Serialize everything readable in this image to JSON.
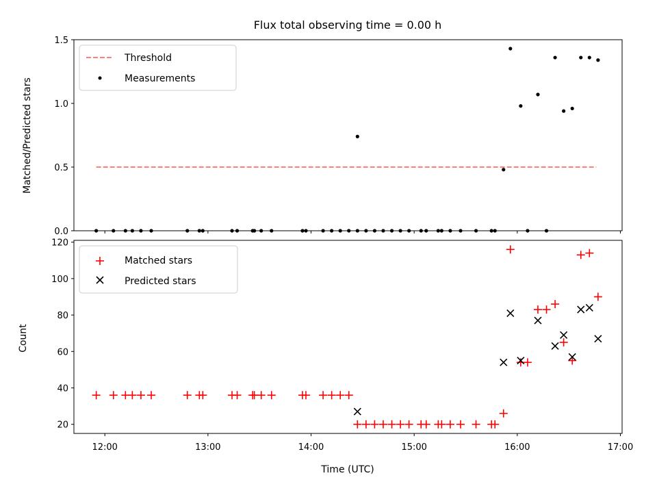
{
  "chart_data": [
    {
      "type": "scatter",
      "title": "Flux total observing time = 0.00 h",
      "xlabel": "",
      "ylabel": "Matched/Predicted stars",
      "ylim": [
        0,
        1.5
      ],
      "yticks": [
        "0.0",
        "0.5",
        "1.0",
        "1.5"
      ],
      "legend_position": "top-left",
      "threshold": {
        "name": "Threshold",
        "value": 0.5,
        "x_start": "11:55",
        "x_end": "16:46",
        "color": "#ff7f7f",
        "style": "dashed"
      },
      "series": [
        {
          "name": "Measurements",
          "color": "#000000",
          "marker": "dot",
          "points": [
            [
              "11:55",
              0
            ],
            [
              "12:05",
              0
            ],
            [
              "12:12",
              0
            ],
            [
              "12:16",
              0
            ],
            [
              "12:21",
              0
            ],
            [
              "12:27",
              0
            ],
            [
              "12:48",
              0
            ],
            [
              "12:55",
              0
            ],
            [
              "12:57",
              0
            ],
            [
              "13:14",
              0
            ],
            [
              "13:17",
              0
            ],
            [
              "13:26",
              0
            ],
            [
              "13:27",
              0
            ],
            [
              "13:31",
              0
            ],
            [
              "13:37",
              0
            ],
            [
              "13:55",
              0
            ],
            [
              "13:57",
              0
            ],
            [
              "14:07",
              0
            ],
            [
              "14:12",
              0
            ],
            [
              "14:17",
              0
            ],
            [
              "14:22",
              0
            ],
            [
              "14:27",
              0
            ],
            [
              "14:27",
              0.74
            ],
            [
              "14:32",
              0
            ],
            [
              "14:37",
              0
            ],
            [
              "14:42",
              0
            ],
            [
              "14:47",
              0
            ],
            [
              "14:52",
              0
            ],
            [
              "14:57",
              0
            ],
            [
              "15:04",
              0
            ],
            [
              "15:07",
              0
            ],
            [
              "15:14",
              0
            ],
            [
              "15:16",
              0
            ],
            [
              "15:21",
              0
            ],
            [
              "15:27",
              0
            ],
            [
              "15:36",
              0
            ],
            [
              "15:45",
              0
            ],
            [
              "15:47",
              0
            ],
            [
              "15:52",
              0.48
            ],
            [
              "15:56",
              1.43
            ],
            [
              "16:02",
              0.98
            ],
            [
              "16:06",
              0
            ],
            [
              "16:12",
              1.07
            ],
            [
              "16:17",
              0
            ],
            [
              "16:22",
              1.36
            ],
            [
              "16:27",
              0.94
            ],
            [
              "16:32",
              0.96
            ],
            [
              "16:37",
              1.36
            ],
            [
              "16:42",
              1.36
            ],
            [
              "16:47",
              1.34
            ]
          ]
        }
      ]
    },
    {
      "type": "scatter",
      "title": "",
      "xlabel": "Time (UTC)",
      "ylabel": "Count",
      "ylim": [
        15,
        121
      ],
      "yticks": [
        "20",
        "40",
        "60",
        "80",
        "100",
        "120"
      ],
      "xlim": [
        "11:42",
        "17:01"
      ],
      "xticks": [
        "12:00",
        "13:00",
        "14:00",
        "15:00",
        "16:00",
        "17:00"
      ],
      "legend_position": "top-left",
      "series": [
        {
          "name": "Matched stars",
          "color": "#ff0000",
          "marker": "plus",
          "points": [
            [
              "11:55",
              36
            ],
            [
              "12:05",
              36
            ],
            [
              "12:12",
              36
            ],
            [
              "12:16",
              36
            ],
            [
              "12:21",
              36
            ],
            [
              "12:27",
              36
            ],
            [
              "12:48",
              36
            ],
            [
              "12:55",
              36
            ],
            [
              "12:57",
              36
            ],
            [
              "13:14",
              36
            ],
            [
              "13:17",
              36
            ],
            [
              "13:26",
              36
            ],
            [
              "13:27",
              36
            ],
            [
              "13:31",
              36
            ],
            [
              "13:37",
              36
            ],
            [
              "13:55",
              36
            ],
            [
              "13:57",
              36
            ],
            [
              "14:07",
              36
            ],
            [
              "14:12",
              36
            ],
            [
              "14:17",
              36
            ],
            [
              "14:22",
              36
            ],
            [
              "14:27",
              20
            ],
            [
              "14:32",
              20
            ],
            [
              "14:37",
              20
            ],
            [
              "14:42",
              20
            ],
            [
              "14:47",
              20
            ],
            [
              "14:52",
              20
            ],
            [
              "14:57",
              20
            ],
            [
              "15:04",
              20
            ],
            [
              "15:07",
              20
            ],
            [
              "15:14",
              20
            ],
            [
              "15:16",
              20
            ],
            [
              "15:21",
              20
            ],
            [
              "15:27",
              20
            ],
            [
              "15:36",
              20
            ],
            [
              "15:45",
              20
            ],
            [
              "15:47",
              20
            ],
            [
              "15:52",
              26
            ],
            [
              "15:56",
              116
            ],
            [
              "16:02",
              54
            ],
            [
              "16:06",
              54
            ],
            [
              "16:12",
              83
            ],
            [
              "16:17",
              83
            ],
            [
              "16:22",
              86
            ],
            [
              "16:27",
              65
            ],
            [
              "16:32",
              55
            ],
            [
              "16:37",
              113
            ],
            [
              "16:42",
              114
            ],
            [
              "16:47",
              90
            ]
          ]
        },
        {
          "name": "Predicted stars",
          "color": "#000000",
          "marker": "x",
          "points": [
            [
              "14:27",
              27
            ],
            [
              "15:52",
              54
            ],
            [
              "15:56",
              81
            ],
            [
              "16:02",
              55
            ],
            [
              "16:12",
              77
            ],
            [
              "16:22",
              63
            ],
            [
              "16:27",
              69
            ],
            [
              "16:32",
              57
            ],
            [
              "16:37",
              83
            ],
            [
              "16:42",
              84
            ],
            [
              "16:47",
              67
            ]
          ]
        }
      ]
    }
  ]
}
